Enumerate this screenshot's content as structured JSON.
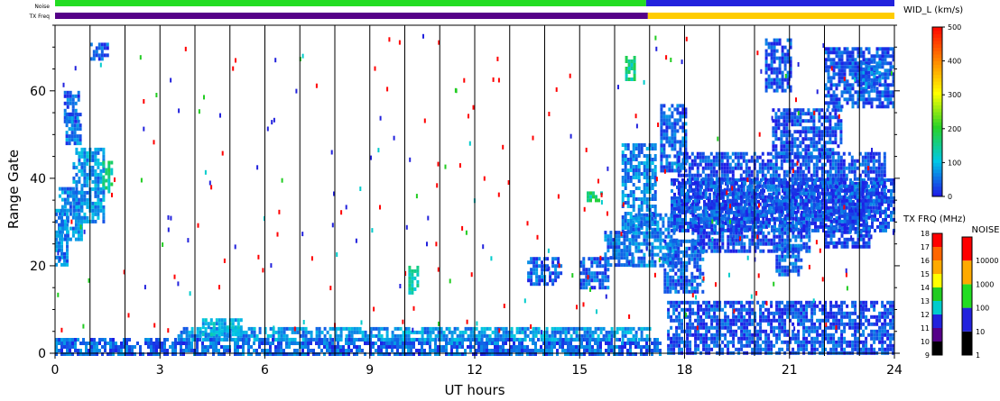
{
  "chart_data": {
    "type": "heatmap",
    "xlabel": "UT hours",
    "ylabel": "Range Gate",
    "xlim": [
      0,
      24
    ],
    "ylim": [
      0,
      75
    ],
    "xticks": [
      "0",
      "3",
      "6",
      "9",
      "12",
      "15",
      "18",
      "21",
      "24"
    ],
    "xtick_values": [
      0,
      3,
      6,
      9,
      12,
      15,
      18,
      21,
      24
    ],
    "yticks": [
      "0",
      "20",
      "40",
      "60"
    ],
    "ytick_values": [
      0,
      20,
      40,
      60
    ],
    "hour_gridlines": true,
    "top_bars": {
      "noise_label": "Noise",
      "freq_label": "TX Freq",
      "noise_segments": [
        {
          "x0": 0,
          "x1": 16.9,
          "color": "#22dd22"
        },
        {
          "x0": 16.9,
          "x1": 24,
          "color": "#2222dd"
        }
      ],
      "freq_segments": [
        {
          "x0": 0,
          "x1": 16.95,
          "color": "#550088"
        },
        {
          "x0": 16.95,
          "x1": 24,
          "color": "#ffcc00"
        }
      ]
    },
    "colorbar_width": {
      "label": "WID_L (km/s)",
      "ticks": [
        "0",
        "100",
        "200",
        "300",
        "400",
        "500"
      ],
      "tick_values": [
        0,
        100,
        200,
        300,
        400,
        500
      ],
      "range": [
        0,
        500
      ]
    },
    "colorbar_freq": {
      "label": "TX FRQ (MHz)",
      "levels": [
        "9",
        "10",
        "11",
        "12",
        "13",
        "14",
        "15",
        "16",
        "17",
        "18"
      ],
      "colors": [
        "#000000",
        "#550088",
        "#2222dd",
        "#00cccc",
        "#22cc22",
        "#ffff00",
        "#ffaa00",
        "#ff6600",
        "#ff0000"
      ]
    },
    "colorbar_noise": {
      "label": "NOISE",
      "levels": [
        "1",
        "10",
        "100",
        "1000",
        "10000"
      ],
      "colors": [
        "#000000",
        "#2222dd",
        "#22dd22",
        "#ffaa00",
        "#ff0000"
      ]
    },
    "regions": [
      {
        "x0": 0.0,
        "x1": 0.35,
        "y0": 20,
        "y1": 33,
        "value": 60
      },
      {
        "x0": 0.1,
        "x1": 0.75,
        "y0": 26,
        "y1": 38,
        "value": 60
      },
      {
        "x0": 0.5,
        "x1": 1.4,
        "y0": 30,
        "y1": 47,
        "value": 70
      },
      {
        "x0": 0.25,
        "x1": 0.7,
        "y0": 53,
        "y1": 60,
        "value": 40
      },
      {
        "x0": 0.3,
        "x1": 0.7,
        "y0": 48,
        "y1": 55,
        "value": 50
      },
      {
        "x0": 1.0,
        "x1": 1.5,
        "y0": 67,
        "y1": 71,
        "value": 30
      },
      {
        "x0": 1.35,
        "x1": 1.6,
        "y0": 37,
        "y1": 44,
        "value": 150
      },
      {
        "x0": 0.0,
        "x1": 17.3,
        "y0": 0,
        "y1": 3.5,
        "value": 40
      },
      {
        "x0": 3.5,
        "x1": 17.0,
        "y0": 3,
        "y1": 6,
        "value": 70
      },
      {
        "x0": 4.2,
        "x1": 5.3,
        "y0": 4,
        "y1": 8,
        "value": 90
      },
      {
        "x0": 13.5,
        "x1": 14.5,
        "y0": 16,
        "y1": 22,
        "value": 40
      },
      {
        "x0": 15.0,
        "x1": 15.8,
        "y0": 15,
        "y1": 22,
        "value": 40
      },
      {
        "x0": 15.7,
        "x1": 16.5,
        "y0": 20,
        "y1": 28,
        "value": 50
      },
      {
        "x0": 16.2,
        "x1": 17.2,
        "y0": 28,
        "y1": 48,
        "value": 60
      },
      {
        "x0": 16.5,
        "x1": 17.8,
        "y0": 20,
        "y1": 32,
        "value": 60
      },
      {
        "x0": 17.4,
        "x1": 18.5,
        "y0": 14,
        "y1": 26,
        "value": 40
      },
      {
        "x0": 17.3,
        "x1": 18.0,
        "y0": 42,
        "y1": 57,
        "value": 40
      },
      {
        "x0": 17.6,
        "x1": 24.0,
        "y0": 28,
        "y1": 40,
        "value": 30
      },
      {
        "x0": 17.8,
        "x1": 23.7,
        "y0": 32,
        "y1": 46,
        "value": 30
      },
      {
        "x0": 18.2,
        "x1": 21.6,
        "y0": 23,
        "y1": 32,
        "value": 30
      },
      {
        "x0": 20.6,
        "x1": 21.3,
        "y0": 18,
        "y1": 25,
        "value": 40
      },
      {
        "x0": 22.0,
        "x1": 23.3,
        "y0": 24,
        "y1": 33,
        "value": 30
      },
      {
        "x0": 20.5,
        "x1": 22.5,
        "y0": 45,
        "y1": 56,
        "value": 30
      },
      {
        "x0": 22.0,
        "x1": 24.0,
        "y0": 56,
        "y1": 70,
        "value": 30
      },
      {
        "x0": 23.0,
        "x1": 23.6,
        "y0": 60,
        "y1": 67,
        "value": 50
      },
      {
        "x0": 20.3,
        "x1": 21.0,
        "y0": 60,
        "y1": 72,
        "value": 30
      },
      {
        "x0": 17.5,
        "x1": 24.0,
        "y0": 0,
        "y1": 12,
        "value": 30
      },
      {
        "x0": 10.1,
        "x1": 10.4,
        "y0": 14,
        "y1": 20,
        "value": 130
      },
      {
        "x0": 15.2,
        "x1": 15.6,
        "y0": 35,
        "y1": 37,
        "value": 150
      },
      {
        "x0": 16.3,
        "x1": 16.6,
        "y0": 63,
        "y1": 68,
        "value": 150
      }
    ]
  }
}
